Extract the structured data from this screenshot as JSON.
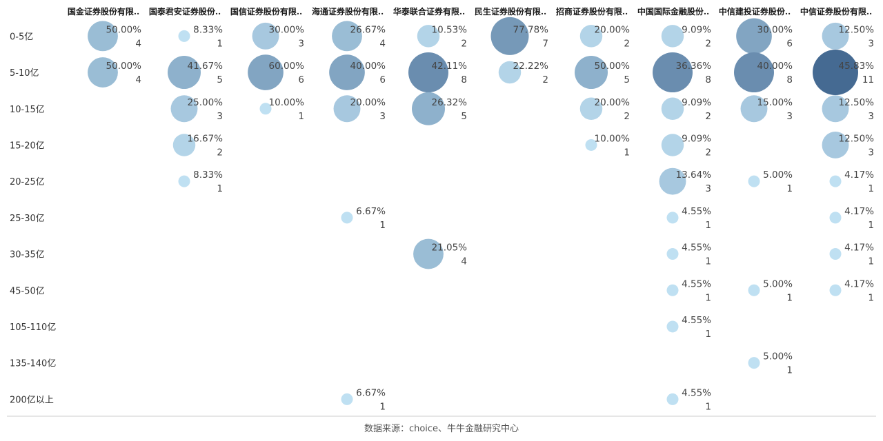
{
  "chart_data": {
    "type": "scatter",
    "subtype": "bubble-matrix",
    "columns": [
      "国金证券股份有限..",
      "国泰君安证券股份..",
      "国信证券股份有限..",
      "海通证券股份有限..",
      "华泰联合证券有限..",
      "民生证券股份有限..",
      "招商证券股份有限..",
      "中国国际金融股份..",
      "中信建投证券股份..",
      "中信证券股份有限.."
    ],
    "rows": [
      "0-5亿",
      "5-10亿",
      "10-15亿",
      "15-20亿",
      "20-25亿",
      "25-30亿",
      "30-35亿",
      "45-50亿",
      "105-110亿",
      "135-140亿",
      "200亿以上"
    ],
    "cells": [
      {
        "row": 0,
        "col": 0,
        "pct": "50.00%",
        "count": 4
      },
      {
        "row": 1,
        "col": 0,
        "pct": "50.00%",
        "count": 4
      },
      {
        "row": 0,
        "col": 1,
        "pct": "8.33%",
        "count": 1
      },
      {
        "row": 1,
        "col": 1,
        "pct": "41.67%",
        "count": 5
      },
      {
        "row": 2,
        "col": 1,
        "pct": "25.00%",
        "count": 3
      },
      {
        "row": 3,
        "col": 1,
        "pct": "16.67%",
        "count": 2
      },
      {
        "row": 4,
        "col": 1,
        "pct": "8.33%",
        "count": 1
      },
      {
        "row": 0,
        "col": 2,
        "pct": "30.00%",
        "count": 3
      },
      {
        "row": 1,
        "col": 2,
        "pct": "60.00%",
        "count": 6
      },
      {
        "row": 2,
        "col": 2,
        "pct": "10.00%",
        "count": 1
      },
      {
        "row": 0,
        "col": 3,
        "pct": "26.67%",
        "count": 4
      },
      {
        "row": 1,
        "col": 3,
        "pct": "40.00%",
        "count": 6
      },
      {
        "row": 2,
        "col": 3,
        "pct": "20.00%",
        "count": 3
      },
      {
        "row": 5,
        "col": 3,
        "pct": "6.67%",
        "count": 1
      },
      {
        "row": 10,
        "col": 3,
        "pct": "6.67%",
        "count": 1
      },
      {
        "row": 0,
        "col": 4,
        "pct": "10.53%",
        "count": 2
      },
      {
        "row": 1,
        "col": 4,
        "pct": "42.11%",
        "count": 8
      },
      {
        "row": 2,
        "col": 4,
        "pct": "26.32%",
        "count": 5
      },
      {
        "row": 6,
        "col": 4,
        "pct": "21.05%",
        "count": 4
      },
      {
        "row": 0,
        "col": 5,
        "pct": "77.78%",
        "count": 7
      },
      {
        "row": 1,
        "col": 5,
        "pct": "22.22%",
        "count": 2
      },
      {
        "row": 0,
        "col": 6,
        "pct": "20.00%",
        "count": 2
      },
      {
        "row": 1,
        "col": 6,
        "pct": "50.00%",
        "count": 5
      },
      {
        "row": 2,
        "col": 6,
        "pct": "20.00%",
        "count": 2
      },
      {
        "row": 3,
        "col": 6,
        "pct": "10.00%",
        "count": 1
      },
      {
        "row": 0,
        "col": 7,
        "pct": "9.09%",
        "count": 2
      },
      {
        "row": 1,
        "col": 7,
        "pct": "36.36%",
        "count": 8
      },
      {
        "row": 2,
        "col": 7,
        "pct": "9.09%",
        "count": 2
      },
      {
        "row": 3,
        "col": 7,
        "pct": "9.09%",
        "count": 2
      },
      {
        "row": 4,
        "col": 7,
        "pct": "13.64%",
        "count": 3
      },
      {
        "row": 5,
        "col": 7,
        "pct": "4.55%",
        "count": 1
      },
      {
        "row": 6,
        "col": 7,
        "pct": "4.55%",
        "count": 1
      },
      {
        "row": 7,
        "col": 7,
        "pct": "4.55%",
        "count": 1
      },
      {
        "row": 8,
        "col": 7,
        "pct": "4.55%",
        "count": 1
      },
      {
        "row": 10,
        "col": 7,
        "pct": "4.55%",
        "count": 1
      },
      {
        "row": 0,
        "col": 8,
        "pct": "30.00%",
        "count": 6
      },
      {
        "row": 1,
        "col": 8,
        "pct": "40.00%",
        "count": 8
      },
      {
        "row": 2,
        "col": 8,
        "pct": "15.00%",
        "count": 3
      },
      {
        "row": 4,
        "col": 8,
        "pct": "5.00%",
        "count": 1
      },
      {
        "row": 7,
        "col": 8,
        "pct": "5.00%",
        "count": 1
      },
      {
        "row": 9,
        "col": 8,
        "pct": "5.00%",
        "count": 1
      },
      {
        "row": 0,
        "col": 9,
        "pct": "12.50%",
        "count": 3
      },
      {
        "row": 1,
        "col": 9,
        "pct": "45.83%",
        "count": 11
      },
      {
        "row": 2,
        "col": 9,
        "pct": "12.50%",
        "count": 3
      },
      {
        "row": 3,
        "col": 9,
        "pct": "12.50%",
        "count": 3
      },
      {
        "row": 4,
        "col": 9,
        "pct": "4.17%",
        "count": 1
      },
      {
        "row": 5,
        "col": 9,
        "pct": "4.17%",
        "count": 1
      },
      {
        "row": 6,
        "col": 9,
        "pct": "4.17%",
        "count": 1
      },
      {
        "row": 7,
        "col": 9,
        "pct": "4.17%",
        "count": 1
      }
    ],
    "size_encoding": "count",
    "color_encoding": "count",
    "color_scale": [
      "#bfe0f2",
      "#456a92"
    ],
    "grid": false,
    "legend": "none"
  },
  "footer": {
    "source": "数据来源：choice、牛牛金融研究中心"
  }
}
